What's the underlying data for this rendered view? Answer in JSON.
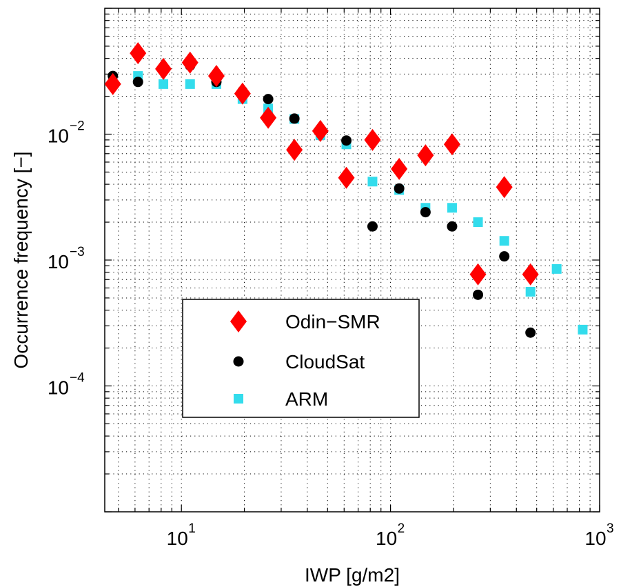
{
  "chart_data": {
    "type": "scatter",
    "title": "",
    "xlabel": "IWP [g/m2]",
    "ylabel": "Occurrence frequency [−]",
    "xscale": "log",
    "yscale": "log",
    "xlim": [
      4.3,
      1000
    ],
    "ylim": [
      1e-05,
      0.1
    ],
    "grid": true,
    "legend_position": "lower-left",
    "x_ticks": [
      {
        "value": 10,
        "base": "10",
        "exp": "1"
      },
      {
        "value": 100,
        "base": "10",
        "exp": "2"
      },
      {
        "value": 1000,
        "base": "10",
        "exp": "3"
      }
    ],
    "y_ticks": [
      {
        "value": 0.01,
        "base": "10",
        "exp": "−2"
      },
      {
        "value": 0.001,
        "base": "10",
        "exp": "−3"
      },
      {
        "value": 0.0001,
        "base": "10",
        "exp": "−4"
      }
    ],
    "series": [
      {
        "name": "Odin−SMR",
        "marker": "diamond",
        "color": "#ff0000",
        "x": [
          4.7,
          6.2,
          8.2,
          11,
          14.7,
          19.6,
          26,
          34.7,
          46.2,
          61.5,
          82,
          110,
          147,
          197,
          262,
          350,
          467
        ],
        "y": [
          0.025,
          0.044,
          0.033,
          0.037,
          0.029,
          0.021,
          0.0135,
          0.0075,
          0.0106,
          0.0045,
          0.009,
          0.0053,
          0.0068,
          0.0083,
          0.00077,
          0.0038,
          0.00077
        ]
      },
      {
        "name": "CloudSat",
        "marker": "circle",
        "color": "#000000",
        "x": [
          4.7,
          6.2,
          11,
          14.7,
          19.6,
          26,
          34.7,
          61.5,
          82,
          110,
          147,
          197,
          262,
          350,
          467
        ],
        "y": [
          0.029,
          0.026,
          0.035,
          0.026,
          0.022,
          0.019,
          0.0133,
          0.0089,
          0.00185,
          0.0037,
          0.0024,
          0.00185,
          0.00053,
          0.00107,
          0.000265
        ]
      },
      {
        "name": "ARM",
        "marker": "square",
        "color": "#33dcec",
        "x": [
          6.2,
          8.2,
          11,
          14.7,
          19.6,
          26,
          34.7,
          46.2,
          61.5,
          82,
          110,
          147,
          197,
          262,
          350,
          467,
          623,
          830
        ],
        "y": [
          0.029,
          0.025,
          0.025,
          0.025,
          0.019,
          0.016,
          0.0132,
          0.0098,
          0.0083,
          0.0042,
          0.0036,
          0.0026,
          0.0026,
          0.002,
          0.00142,
          0.00056,
          0.00085,
          0.00028
        ]
      }
    ]
  }
}
